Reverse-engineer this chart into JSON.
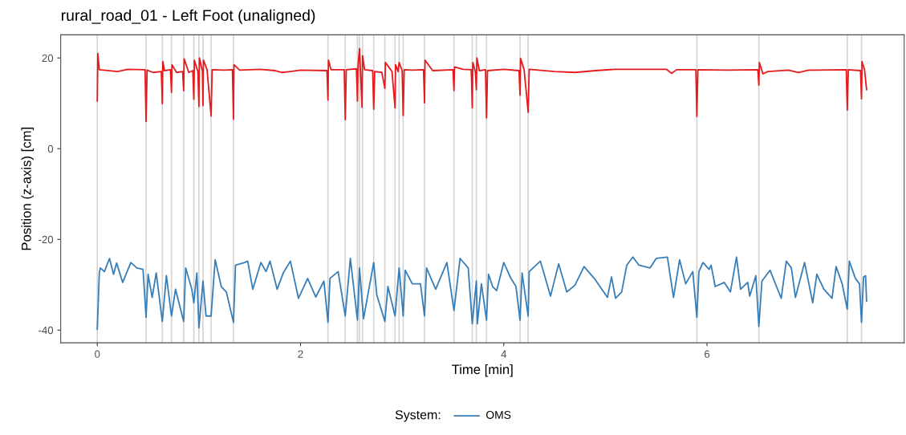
{
  "chart_data": {
    "type": "line",
    "title": "rural_road_01 - Left Foot (unaligned)",
    "xlabel": "Time [min]",
    "ylabel": "Position (z-axis) [cm]",
    "legend_title": "System:",
    "xlim": [
      -0.36,
      7.94
    ],
    "ylim": [
      -42.8,
      25.1
    ],
    "xticks": [
      0,
      2,
      4,
      6
    ],
    "yticks": [
      -40,
      -20,
      0,
      20
    ],
    "grid": false,
    "legend": "bottom",
    "marker": "none",
    "line_style": "solid",
    "series": [
      {
        "color": "#e41a1c",
        "x": [
          0.0,
          0.005,
          0.02,
          0.2,
          0.3,
          0.47,
          0.48,
          0.49,
          0.55,
          0.63,
          0.64,
          0.645,
          0.66,
          0.72,
          0.73,
          0.735,
          0.78,
          0.84,
          0.85,
          0.855,
          0.9,
          0.94,
          0.95,
          0.955,
          0.99,
          1.0,
          1.005,
          1.035,
          1.04,
          1.045,
          1.08,
          1.12,
          1.13,
          1.25,
          1.33,
          1.34,
          1.345,
          1.4,
          1.6,
          1.75,
          1.82,
          1.9,
          2.0,
          2.26,
          2.27,
          2.275,
          2.3,
          2.43,
          2.44,
          2.45,
          2.55,
          2.56,
          2.565,
          2.58,
          2.59,
          2.605,
          2.61,
          2.63,
          2.71,
          2.72,
          2.73,
          2.8,
          2.83,
          2.835,
          2.9,
          2.93,
          2.935,
          2.96,
          2.97,
          3.0,
          3.01,
          3.02,
          3.1,
          3.21,
          3.22,
          3.225,
          3.3,
          3.5,
          3.51,
          3.515,
          3.6,
          3.68,
          3.69,
          3.695,
          3.72,
          3.73,
          3.735,
          3.76,
          3.82,
          3.83,
          3.84,
          4.0,
          4.15,
          4.16,
          4.165,
          4.2,
          4.24,
          4.25,
          4.5,
          4.7,
          4.9,
          5.1,
          5.6,
          5.65,
          5.7,
          5.89,
          5.9,
          5.91,
          6.2,
          6.5,
          6.51,
          6.515,
          6.55,
          6.6,
          6.8,
          6.9,
          7.0,
          7.37,
          7.38,
          7.39,
          7.51,
          7.52,
          7.525,
          7.55,
          7.57
        ],
        "values": [
          10.5,
          21,
          17.4,
          17.0,
          17.5,
          17.4,
          6.0,
          17.3,
          16.8,
          17.0,
          9.9,
          19.2,
          17.2,
          17.4,
          12.4,
          18.5,
          16.8,
          17.0,
          12.8,
          19.8,
          16.8,
          17.2,
          10.9,
          19.5,
          17.0,
          9.3,
          20,
          17,
          9.5,
          19.5,
          17.4,
          7.2,
          17.4,
          17.3,
          17.4,
          6.5,
          18.5,
          17.3,
          17.5,
          17.2,
          16.8,
          17.0,
          17.3,
          17.2,
          10.7,
          19.5,
          17.4,
          17.4,
          6.4,
          17.4,
          17.6,
          10.5,
          18,
          22.1,
          17,
          9.1,
          20.5,
          17.4,
          17.2,
          8.7,
          17,
          16.8,
          13.3,
          19,
          17,
          9.0,
          18.5,
          17,
          19,
          17.2,
          7.3,
          17.4,
          17.3,
          17.4,
          10.1,
          19.5,
          17.2,
          17.4,
          12.8,
          18,
          17.5,
          17.4,
          9.0,
          19,
          17,
          13,
          20,
          17.2,
          17.4,
          6.8,
          17.2,
          17.5,
          17.2,
          11.8,
          19.9,
          17.4,
          8.0,
          17.5,
          17.0,
          16.8,
          17.2,
          17.5,
          17.5,
          16.6,
          17.4,
          17.4,
          7.1,
          17.4,
          17.3,
          17.4,
          14.0,
          19,
          16.5,
          17,
          17.3,
          16.8,
          17.3,
          17.4,
          8.5,
          17.4,
          17.2,
          11.0,
          19.2,
          17.4,
          13.0
        ]
      },
      {
        "name": "OMS",
        "color": "#377eb8",
        "x": [
          0.0,
          0.02,
          0.03,
          0.07,
          0.12,
          0.16,
          0.19,
          0.25,
          0.33,
          0.39,
          0.45,
          0.48,
          0.5,
          0.54,
          0.58,
          0.64,
          0.68,
          0.73,
          0.77,
          0.85,
          0.87,
          0.93,
          0.95,
          0.98,
          1.0,
          1.04,
          1.07,
          1.12,
          1.16,
          1.22,
          1.27,
          1.34,
          1.36,
          1.45,
          1.48,
          1.53,
          1.61,
          1.66,
          1.7,
          1.77,
          1.83,
          1.9,
          1.98,
          2.07,
          2.15,
          2.23,
          2.27,
          2.29,
          2.37,
          2.44,
          2.49,
          2.56,
          2.58,
          2.62,
          2.72,
          2.75,
          2.83,
          2.86,
          2.93,
          2.97,
          3.01,
          3.03,
          3.1,
          3.18,
          3.22,
          3.24,
          3.33,
          3.44,
          3.51,
          3.57,
          3.65,
          3.69,
          3.73,
          3.74,
          3.78,
          3.83,
          3.85,
          3.89,
          3.93,
          4.0,
          4.07,
          4.12,
          4.16,
          4.18,
          4.24,
          4.25,
          4.36,
          4.46,
          4.54,
          4.62,
          4.7,
          4.79,
          4.89,
          5.02,
          5.06,
          5.1,
          5.16,
          5.21,
          5.27,
          5.33,
          5.44,
          5.5,
          5.61,
          5.67,
          5.73,
          5.79,
          5.86,
          5.9,
          5.92,
          5.96,
          6.02,
          6.04,
          6.08,
          6.17,
          6.23,
          6.29,
          6.33,
          6.4,
          6.42,
          6.48,
          6.51,
          6.54,
          6.62,
          6.73,
          6.78,
          6.83,
          6.87,
          6.96,
          7.04,
          7.08,
          7.15,
          7.23,
          7.27,
          7.33,
          7.38,
          7.4,
          7.46,
          7.5,
          7.52,
          7.54,
          7.56,
          7.57
        ],
        "values": [
          -39.8,
          -27.4,
          -26.3,
          -27.1,
          -24.2,
          -27.7,
          -25.2,
          -29.5,
          -25.1,
          -26.3,
          -26.6,
          -37.2,
          -27.7,
          -32.8,
          -27.4,
          -38.1,
          -28.0,
          -36.9,
          -31.0,
          -38.1,
          -26.3,
          -31.0,
          -34.0,
          -27.4,
          -39.5,
          -29.2,
          -36.9,
          -36.9,
          -24.5,
          -30.4,
          -31.6,
          -38.3,
          -25.7,
          -25.1,
          -24.8,
          -31.0,
          -25.1,
          -27.1,
          -24.8,
          -31.0,
          -27.4,
          -24.8,
          -33.0,
          -28.6,
          -32.7,
          -29.2,
          -38.3,
          -28.6,
          -27.1,
          -36.9,
          -24.2,
          -37.8,
          -26.3,
          -37.5,
          -25.1,
          -32.2,
          -38.1,
          -30.4,
          -36.9,
          -26.3,
          -36.9,
          -26.8,
          -29.8,
          -29.8,
          -36.9,
          -26.3,
          -31.0,
          -25.1,
          -35.7,
          -24.2,
          -26.3,
          -38.6,
          -29.2,
          -38.6,
          -29.8,
          -37.8,
          -27.7,
          -30.4,
          -31.3,
          -25.1,
          -28.6,
          -30.4,
          -37.8,
          -27.4,
          -36.9,
          -27.1,
          -24.8,
          -32.5,
          -25.4,
          -31.6,
          -30.1,
          -26.0,
          -28.6,
          -32.8,
          -28.3,
          -33.0,
          -31.6,
          -25.7,
          -23.9,
          -25.7,
          -26.3,
          -24.2,
          -23.9,
          -32.8,
          -24.5,
          -29.8,
          -27.1,
          -37.2,
          -27.1,
          -25.1,
          -26.6,
          -25.7,
          -30.4,
          -29.5,
          -31.6,
          -23.9,
          -31.0,
          -29.5,
          -32.5,
          -28.0,
          -39.2,
          -29.2,
          -26.8,
          -33.0,
          -24.8,
          -26.3,
          -32.8,
          -25.1,
          -34.0,
          -27.7,
          -31.0,
          -33.0,
          -26.0,
          -29.8,
          -35.4,
          -24.8,
          -28.6,
          -29.8,
          -38.3,
          -28.3,
          -28.0,
          -33.6
        ]
      }
    ],
    "ref_lines": [
      {
        "axis": "x",
        "value": 0.0,
        "color": "#d4d4d4"
      },
      {
        "axis": "x",
        "value": 0.48,
        "color": "#d4d4d4"
      },
      {
        "axis": "x",
        "value": 0.64,
        "color": "#d4d4d4"
      },
      {
        "axis": "x",
        "value": 0.73,
        "color": "#d4d4d4"
      },
      {
        "axis": "x",
        "value": 0.85,
        "color": "#d4d4d4"
      },
      {
        "axis": "x",
        "value": 0.95,
        "color": "#d4d4d4"
      },
      {
        "axis": "x",
        "value": 1.0,
        "color": "#d4d4d4"
      },
      {
        "axis": "x",
        "value": 1.04,
        "color": "#d4d4d4"
      },
      {
        "axis": "x",
        "value": 1.12,
        "color": "#d4d4d4"
      },
      {
        "axis": "x",
        "value": 1.34,
        "color": "#d4d4d4"
      },
      {
        "axis": "x",
        "value": 2.27,
        "color": "#d4d4d4"
      },
      {
        "axis": "x",
        "value": 2.44,
        "color": "#d4d4d4"
      },
      {
        "axis": "x",
        "value": 2.56,
        "color": "#d4d4d4"
      },
      {
        "axis": "x",
        "value": 2.58,
        "color": "#d4d4d4"
      },
      {
        "axis": "x",
        "value": 2.61,
        "color": "#d4d4d4"
      },
      {
        "axis": "x",
        "value": 2.72,
        "color": "#d4d4d4"
      },
      {
        "axis": "x",
        "value": 2.83,
        "color": "#d4d4d4"
      },
      {
        "axis": "x",
        "value": 2.93,
        "color": "#d4d4d4"
      },
      {
        "axis": "x",
        "value": 2.97,
        "color": "#d4d4d4"
      },
      {
        "axis": "x",
        "value": 3.01,
        "color": "#d4d4d4"
      },
      {
        "axis": "x",
        "value": 3.22,
        "color": "#d4d4d4"
      },
      {
        "axis": "x",
        "value": 3.51,
        "color": "#d4d4d4"
      },
      {
        "axis": "x",
        "value": 3.69,
        "color": "#d4d4d4"
      },
      {
        "axis": "x",
        "value": 3.73,
        "color": "#d4d4d4"
      },
      {
        "axis": "x",
        "value": 3.83,
        "color": "#d4d4d4"
      },
      {
        "axis": "x",
        "value": 4.16,
        "color": "#d4d4d4"
      },
      {
        "axis": "x",
        "value": 4.24,
        "color": "#d4d4d4"
      },
      {
        "axis": "x",
        "value": 5.9,
        "color": "#d4d4d4"
      },
      {
        "axis": "x",
        "value": 6.51,
        "color": "#d4d4d4"
      },
      {
        "axis": "x",
        "value": 7.38,
        "color": "#d4d4d4"
      },
      {
        "axis": "x",
        "value": 7.52,
        "color": "#d4d4d4"
      }
    ]
  }
}
